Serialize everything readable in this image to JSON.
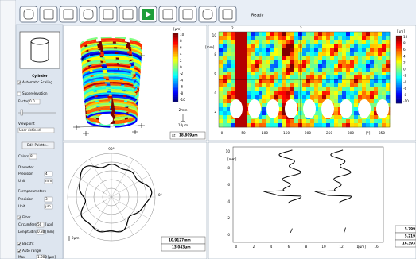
{
  "toolbar": {
    "status": "Ready"
  },
  "panel": {
    "shape": "Cylinder",
    "automatic_scaling": "Automatic Scaling",
    "superelevation": "Superelevation",
    "factor_label": "Factor",
    "factor_value": "0.0",
    "viewpoint": "Viewpoint",
    "viewpoint_value": "User defined",
    "edit_palette": "Edit Palette...",
    "colors_label": "Colors",
    "colors_value": "8",
    "diameter": "Diameter",
    "diameter_precision_label": "Precision",
    "diameter_precision": "4",
    "diameter_unit_label": "Unit",
    "diameter_unit": "mm",
    "form": "Formparameters",
    "form_precision_label": "Precision",
    "form_precision": "3",
    "form_unit_label": "Unit",
    "form_unit": "µm",
    "filter": "Filter",
    "circumference_label": "Circumference",
    "circumference_value": "50",
    "circumference_unit": "[upr]",
    "longitudinal_label": "Longitudinal",
    "longitudinal_value": "0.80",
    "longitudinal_unit": "[mm]",
    "backfit": "Backfit",
    "auto_range": "Auto range",
    "max_label": "Max",
    "max_value": "1.000",
    "max_unit": "[µm]"
  },
  "view3d": {
    "colorbar_unit": "[µm]",
    "colorbar_ticks": [
      "10",
      "8",
      "6",
      "4",
      "2",
      "0",
      "-2",
      "-4",
      "-6",
      "-8",
      "-10"
    ],
    "scale_length": "2mm",
    "scale_height": "10µm",
    "readout_label": "zz",
    "readout_value": "18.809µm"
  },
  "developed": {
    "markers": [
      "2",
      "2"
    ],
    "y_unit": "[mm]",
    "y_ticks": [
      "10",
      "8",
      "6",
      "4",
      "2"
    ],
    "x_ticks": [
      "0",
      "50",
      "100",
      "150",
      "200",
      "250",
      "300"
    ],
    "x_unit": "[°]",
    "x_last": "350",
    "colorbar_unit": "[µm]",
    "colorbar_ticks": [
      "10",
      "8",
      "6",
      "4",
      "2",
      "0",
      "-2",
      "-4",
      "-6",
      "-8",
      "-10"
    ]
  },
  "polar": {
    "top_label": "90°",
    "right_label": "0°",
    "scale": "2µm",
    "readout_diameter": "10.9127mm",
    "readout_form": "13.043µm"
  },
  "profile": {
    "y_unit": "[mm]",
    "y_ticks": [
      "10",
      "8",
      "6",
      "4",
      "2",
      "0"
    ],
    "x_ticks": [
      "0",
      "2",
      "4",
      "6",
      "8",
      "10",
      "12",
      "14"
    ],
    "x_unit": "[µm]",
    "x_last": "16",
    "readouts": [
      "5.799",
      "5.219",
      "16.393"
    ]
  }
}
